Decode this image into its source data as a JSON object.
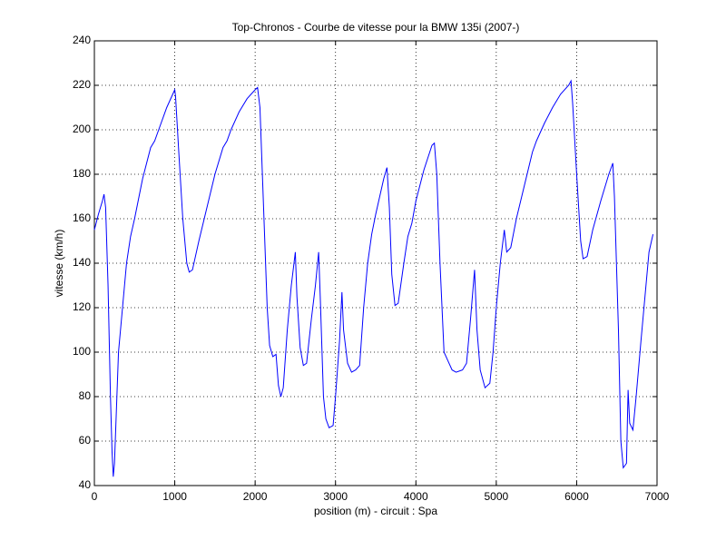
{
  "chart_data": {
    "type": "line",
    "title": "Top-Chronos - Courbe de vitesse pour la BMW 135i (2007-)",
    "x_label": "position (m) - circuit : Spa",
    "y_label": "vitesse (km/h)",
    "x": [
      0,
      50,
      100,
      120,
      140,
      170,
      200,
      220,
      235,
      250,
      280,
      300,
      350,
      400,
      450,
      500,
      600,
      700,
      750,
      800,
      900,
      1000,
      1010,
      1050,
      1100,
      1150,
      1180,
      1220,
      1300,
      1400,
      1500,
      1600,
      1650,
      1700,
      1800,
      1900,
      2000,
      2030,
      2060,
      2100,
      2150,
      2180,
      2220,
      2260,
      2290,
      2320,
      2350,
      2400,
      2450,
      2500,
      2520,
      2560,
      2600,
      2640,
      2700,
      2750,
      2790,
      2810,
      2850,
      2880,
      2920,
      2970,
      3000,
      3050,
      3080,
      3100,
      3150,
      3200,
      3250,
      3300,
      3350,
      3400,
      3450,
      3500,
      3600,
      3640,
      3670,
      3700,
      3740,
      3780,
      3850,
      3900,
      3950,
      4000,
      4100,
      4200,
      4230,
      4260,
      4300,
      4350,
      4400,
      4450,
      4500,
      4580,
      4630,
      4680,
      4730,
      4760,
      4800,
      4860,
      4920,
      4960,
      5000,
      5050,
      5100,
      5130,
      5180,
      5250,
      5350,
      5450,
      5500,
      5600,
      5700,
      5800,
      5900,
      5930,
      5950,
      6000,
      6050,
      6080,
      6130,
      6200,
      6300,
      6400,
      6450,
      6470,
      6520,
      6550,
      6580,
      6620,
      6640,
      6660,
      6700,
      6740,
      6800,
      6850,
      6900,
      6950
    ],
    "series": [
      {
        "name": "vitesse",
        "color": "#0000ff",
        "values": [
          155,
          162,
          168,
          171,
          165,
          130,
          80,
          55,
          44,
          50,
          80,
          100,
          120,
          140,
          152,
          160,
          178,
          192,
          195,
          200,
          210,
          218,
          215,
          190,
          160,
          140,
          136,
          137,
          150,
          165,
          180,
          192,
          195,
          200,
          208,
          214,
          218,
          219,
          210,
          170,
          120,
          103,
          98,
          99,
          85,
          80,
          84,
          110,
          130,
          145,
          125,
          102,
          94,
          95,
          115,
          130,
          145,
          125,
          80,
          70,
          66,
          67,
          80,
          105,
          127,
          110,
          95,
          91,
          92,
          94,
          120,
          140,
          153,
          162,
          178,
          183,
          165,
          135,
          121,
          122,
          140,
          152,
          158,
          168,
          182,
          193,
          194,
          180,
          140,
          100,
          96,
          92,
          91,
          92,
          95,
          115,
          137,
          110,
          92,
          84,
          86,
          100,
          120,
          140,
          155,
          145,
          147,
          160,
          175,
          190,
          195,
          203,
          210,
          216,
          220,
          222,
          212,
          180,
          150,
          142,
          143,
          155,
          168,
          180,
          185,
          170,
          110,
          60,
          48,
          50,
          83,
          68,
          65,
          80,
          105,
          125,
          145,
          153
        ]
      }
    ],
    "xlim": [
      0,
      7000
    ],
    "ylim": [
      40,
      240
    ],
    "xticks": [
      0,
      1000,
      2000,
      3000,
      4000,
      5000,
      6000,
      7000
    ],
    "yticks": [
      40,
      60,
      80,
      100,
      120,
      140,
      160,
      180,
      200,
      220,
      240
    ],
    "grid": true
  }
}
